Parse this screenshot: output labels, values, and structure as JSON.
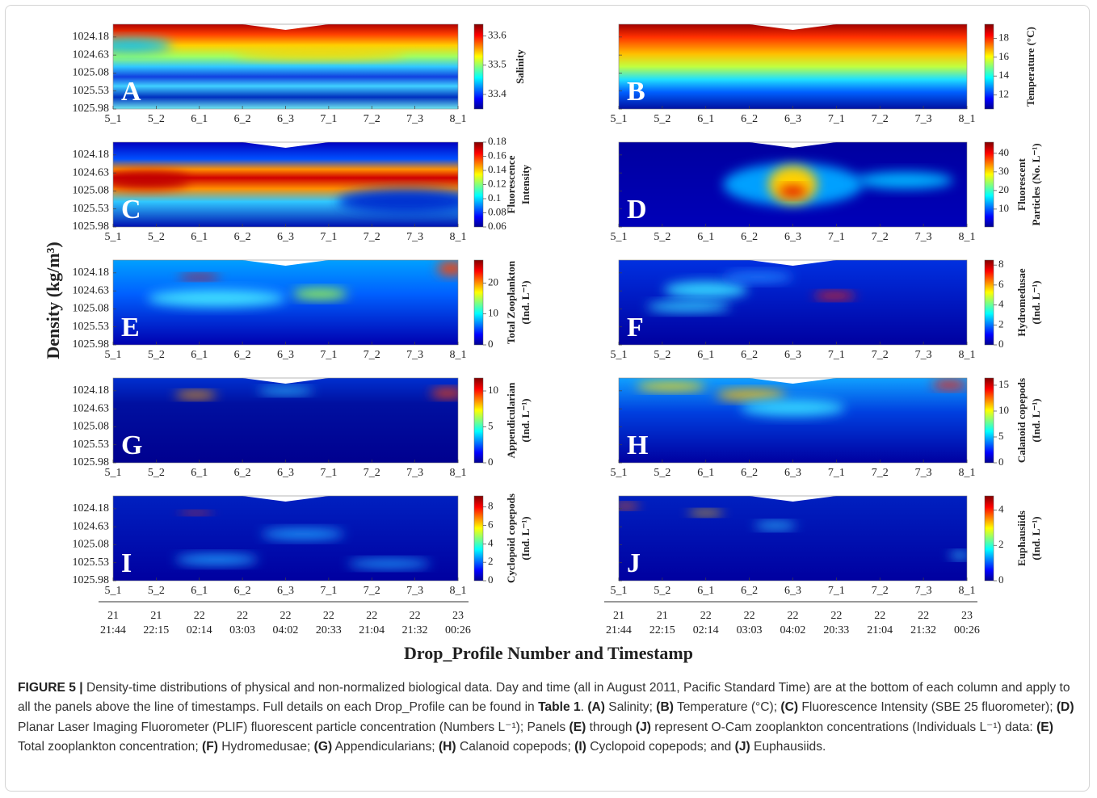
{
  "figure": {
    "y_label": "Density (kg/m³)",
    "x_label": "Drop_Profile Number and Timestamp",
    "categories": [
      "5_1",
      "5_2",
      "6_1",
      "6_2",
      "6_3",
      "7_1",
      "7_2",
      "7_3",
      "8_1"
    ],
    "days": [
      "21",
      "21",
      "22",
      "22",
      "22",
      "22",
      "22",
      "22",
      "23"
    ],
    "times": [
      "21:44",
      "22:15",
      "02:14",
      "03:03",
      "04:02",
      "20:33",
      "21:04",
      "21:32",
      "00:26"
    ],
    "ylim": [
      1023.86,
      1025.98
    ],
    "y_inverted": true,
    "yticks": [
      1024.18,
      1024.63,
      1025.08,
      1025.53,
      1025.98
    ],
    "colormap": "jet",
    "panels": [
      {
        "letter": "A",
        "colorbar_label": [
          "Salinity"
        ],
        "clim": [
          33.35,
          33.64
        ],
        "cticks": [
          33.4,
          33.5,
          33.6
        ]
      },
      {
        "letter": "B",
        "colorbar_label": [
          "Temperature (°C)"
        ],
        "clim": [
          10.5,
          19.5
        ],
        "cticks": [
          12,
          14,
          16,
          18
        ]
      },
      {
        "letter": "C",
        "colorbar_label": [
          "Fluorescence",
          "Intensity"
        ],
        "clim": [
          0.06,
          0.18
        ],
        "cticks": [
          0.06,
          0.08,
          0.1,
          0.12,
          0.14,
          0.16,
          0.18
        ]
      },
      {
        "letter": "D",
        "colorbar_label": [
          "Fluorescent",
          "Particles (No. L⁻¹)"
        ],
        "clim": [
          0.4,
          46
        ],
        "cticks": [
          10,
          20,
          30,
          40
        ]
      },
      {
        "letter": "E",
        "colorbar_label": [
          "Total Zooplankton",
          "(Ind. L⁻¹)"
        ],
        "clim": [
          0,
          27.4
        ],
        "cticks": [
          0,
          10,
          20
        ]
      },
      {
        "letter": "F",
        "colorbar_label": [
          "Hydromedusae",
          "(Ind. L⁻¹)"
        ],
        "clim": [
          0,
          8.5
        ],
        "cticks": [
          0,
          2,
          4,
          6,
          8
        ]
      },
      {
        "letter": "G",
        "colorbar_label": [
          "Appendicularian",
          "(Ind. L⁻¹)"
        ],
        "clim": [
          0,
          11.8
        ],
        "cticks": [
          0,
          5,
          10
        ]
      },
      {
        "letter": "H",
        "colorbar_label": [
          "Calanoid copepods",
          "(Ind. L⁻¹)"
        ],
        "clim": [
          0,
          16.4
        ],
        "cticks": [
          0,
          5,
          10,
          15
        ]
      },
      {
        "letter": "I",
        "colorbar_label": [
          "Cyclopoid copepods",
          "(Ind. L⁻¹)"
        ],
        "clim": [
          0,
          9.2
        ],
        "cticks": [
          0,
          2,
          4,
          6,
          8
        ]
      },
      {
        "letter": "J",
        "colorbar_label": [
          "Euphausiids",
          "(Ind. L⁻¹)"
        ],
        "clim": [
          0,
          4.8
        ],
        "cticks": [
          0,
          2,
          4
        ]
      }
    ]
  },
  "caption": [
    {
      "text": "FIGURE 5 |",
      "bold": true
    },
    {
      "text": " Density-time distributions of physical and non-normalized biological data. Day and time (all in August 2011, Pacific Standard Time) are at the bottom of each column and apply to all the panels above the line of timestamps. Full details on each Drop_Profile can be found in ",
      "bold": false
    },
    {
      "text": "Table 1",
      "bold": true
    },
    {
      "text": ". ",
      "bold": false
    },
    {
      "text": "(A)",
      "bold": true
    },
    {
      "text": " Salinity; ",
      "bold": false
    },
    {
      "text": "(B)",
      "bold": true
    },
    {
      "text": " Temperature (°C); ",
      "bold": false
    },
    {
      "text": "(C)",
      "bold": true
    },
    {
      "text": " Fluorescence Intensity (SBE 25 fluorometer); ",
      "bold": false
    },
    {
      "text": "(D)",
      "bold": true
    },
    {
      "text": " Planar Laser Imaging Fluorometer (PLIF) fluorescent particle concentration (Numbers L⁻¹); Panels ",
      "bold": false
    },
    {
      "text": "(E)",
      "bold": true
    },
    {
      "text": " through ",
      "bold": false
    },
    {
      "text": "(J)",
      "bold": true
    },
    {
      "text": " represent O-Cam zooplankton concentrations (Individuals L⁻¹) data: ",
      "bold": false
    },
    {
      "text": "(E)",
      "bold": true
    },
    {
      "text": " Total zooplankton concentration; ",
      "bold": false
    },
    {
      "text": "(F)",
      "bold": true
    },
    {
      "text": " Hydromedusae; ",
      "bold": false
    },
    {
      "text": "(G)",
      "bold": true
    },
    {
      "text": " Appendicularians; ",
      "bold": false
    },
    {
      "text": "(H)",
      "bold": true
    },
    {
      "text": " Calanoid copepods; ",
      "bold": false
    },
    {
      "text": "(I)",
      "bold": true
    },
    {
      "text": " Cyclopoid copepods; and ",
      "bold": false
    },
    {
      "text": "(J)",
      "bold": true
    },
    {
      "text": " Euphausiids.",
      "bold": false
    }
  ]
}
